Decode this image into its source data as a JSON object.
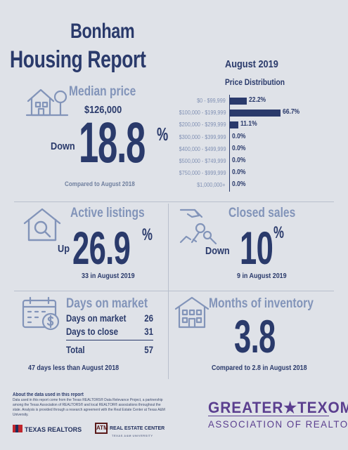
{
  "header": {
    "city": "Bonham",
    "title": "Housing Report",
    "month": "August 2019"
  },
  "median_price": {
    "label": "Median price",
    "value": "$126,000",
    "direction": "Down",
    "change": "18.8",
    "pct_sign": "%",
    "compare": "Compared to August 2018"
  },
  "price_distribution": {
    "title": "Price Distribution"
  },
  "chart_data": {
    "type": "bar",
    "title": "Price Distribution",
    "categories": [
      "$0 - $99,999",
      "$100,000 - $199,999",
      "$200,000 - $299,999",
      "$300,000 - $399,999",
      "$400,000 - $499,999",
      "$500,000 - $749,999",
      "$750,000 - $999,999",
      "$1,000,000+"
    ],
    "values": [
      22.2,
      66.7,
      11.1,
      0.0,
      0.0,
      0.0,
      0.0,
      0.0
    ],
    "value_labels": [
      "22.2%",
      "66.7%",
      "11.1%",
      "0.0%",
      "0.0%",
      "0.0%",
      "0.0%",
      "0.0%"
    ],
    "orientation": "horizontal",
    "xlim": [
      0,
      100
    ],
    "color": "#2a3a6b"
  },
  "active_listings": {
    "label": "Active listings",
    "direction": "Up",
    "change": "26.9",
    "pct_sign": "%",
    "sub": "33 in August 2019"
  },
  "closed_sales": {
    "label": "Closed sales",
    "direction": "Down",
    "change": "10",
    "pct_sign": "%",
    "sub": "9 in August 2019"
  },
  "days_on_market": {
    "label": "Days on market",
    "rows": [
      {
        "key": "Days on market",
        "value": "26"
      },
      {
        "key": "Days to close",
        "value": "31"
      }
    ],
    "total_key": "Total",
    "total_value": "57",
    "sub": "47 days less than August 2018"
  },
  "months_inventory": {
    "label": "Months of inventory",
    "value": "3.8",
    "sub": "Compared to 2.8 in August 2018"
  },
  "footer": {
    "about_title": "About the data used in this report",
    "about_text": "Data used in this report come from the Texas REALTORS® Data Relevance Project, a partnership among the Texas Association of REALTORS® and local REALTOR® associations throughout the state. Analysis is provided through a research agreement with the Real Estate Center at Texas A&M University.",
    "tx_logo": "TEXAS REALTORS",
    "rec_logo": "REAL ESTATE CENTER",
    "rec_sub": "TEXAS A&M UNIVERSITY",
    "rec_mark": "ATM",
    "assoc_line1": "GREATER★TEXOMA",
    "assoc_line2": "ASSOCIATION OF REALTORS"
  },
  "icons": {
    "median": "house-tree-icon",
    "active": "house-search-icon",
    "closed": "hand-key-icon",
    "days": "calendar-dollar-icon",
    "months": "building-icon"
  },
  "colors": {
    "navy": "#2a3a6b",
    "steel": "#8294b9",
    "background": "#dfe2e8",
    "purple": "#5b3f8f"
  }
}
